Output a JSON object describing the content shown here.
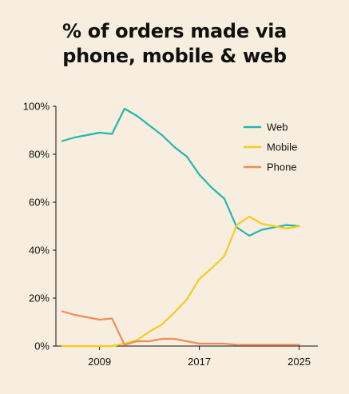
{
  "title": {
    "line1": "% of orders made via",
    "line2": "phone, mobile & web"
  },
  "chart_data": {
    "type": "line",
    "title": "% of orders made via phone, mobile & web",
    "xlabel": "",
    "ylabel": "",
    "xlim": [
      2005.5,
      2026.5
    ],
    "ylim": [
      0,
      100
    ],
    "y_ticks": [
      0,
      20,
      40,
      60,
      80,
      100
    ],
    "y_tick_labels": [
      "0%",
      "20%",
      "40%",
      "60%",
      "80%",
      "100%"
    ],
    "x_ticks": [
      2009,
      2017,
      2025
    ],
    "x_tick_labels": [
      "2009",
      "2017",
      "2025"
    ],
    "grid": false,
    "legend_position": "top-right",
    "colors": {
      "Web": "#22b7ad",
      "Mobile": "#f5cc1c",
      "Phone": "#f08c5a"
    },
    "series": [
      {
        "name": "Web",
        "x": [
          2006,
          2007,
          2008,
          2009,
          2010,
          2011,
          2012,
          2013,
          2014,
          2015,
          2016,
          2017,
          2018,
          2019,
          2020,
          2021,
          2022,
          2023,
          2024,
          2025
        ],
        "values": [
          85.5,
          87,
          88,
          89,
          88.5,
          99,
          96,
          92,
          88,
          83,
          79,
          71.5,
          66,
          61.5,
          49.5,
          46,
          48.5,
          49.5,
          50.5,
          50
        ]
      },
      {
        "name": "Mobile",
        "x": [
          2006,
          2007,
          2008,
          2009,
          2010,
          2011,
          2012,
          2013,
          2014,
          2015,
          2016,
          2017,
          2018,
          2019,
          2020,
          2021,
          2022,
          2023,
          2024,
          2025
        ],
        "values": [
          0,
          0,
          0,
          0,
          0,
          1,
          2.5,
          6,
          9,
          14,
          19.5,
          28,
          32.5,
          37.5,
          50.5,
          54,
          51,
          50,
          49,
          50
        ]
      },
      {
        "name": "Phone",
        "x": [
          2006,
          2007,
          2008,
          2009,
          2010,
          2011,
          2012,
          2013,
          2014,
          2015,
          2016,
          2017,
          2018,
          2019,
          2020,
          2021,
          2022,
          2023,
          2024,
          2025
        ],
        "values": [
          14.5,
          13,
          12,
          11,
          11.5,
          0.5,
          2,
          2,
          3,
          3,
          2,
          1,
          1,
          1,
          0.5,
          0.5,
          0.5,
          0.5,
          0.5,
          0.5
        ]
      }
    ]
  }
}
